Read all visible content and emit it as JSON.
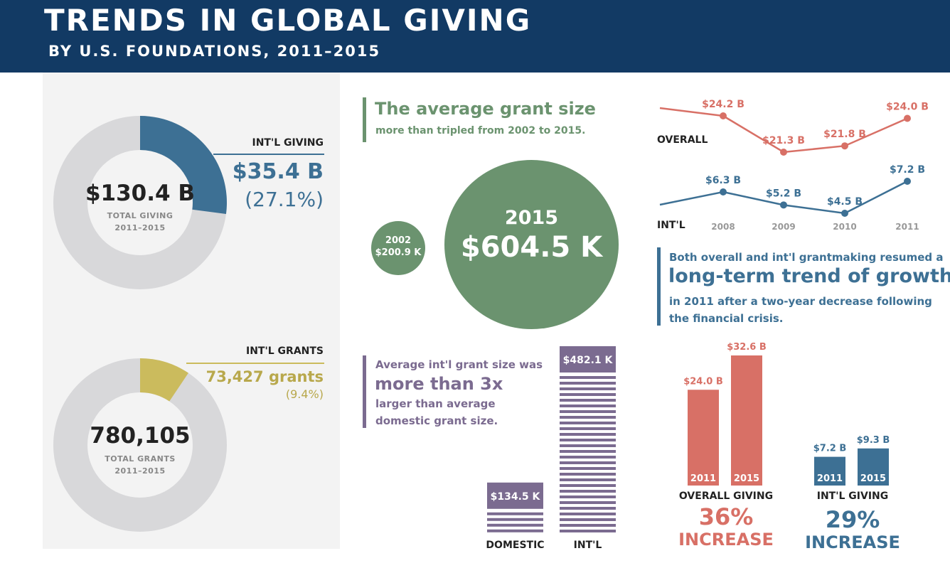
{
  "header": {
    "title": "TRENDS IN GLOBAL GIVING",
    "subtitle": "BY U.S. FOUNDATIONS, 2011–2015"
  },
  "colors": {
    "navy": "#123a64",
    "blue": "#3d7094",
    "green": "#6b936f",
    "gold": "#cbbb5d",
    "purple": "#7b6b90",
    "coral": "#d87066",
    "gray_ring": "#d8d8da"
  },
  "donuts": [
    {
      "center_value": "$130.4 B",
      "center_label_1": "TOTAL GIVING",
      "center_label_2": "2011–2015",
      "callout_label": "INT'L GIVING",
      "callout_value": "$35.4 B",
      "callout_percent": "(27.1%)",
      "share": 0.271
    },
    {
      "center_value": "780,105",
      "center_label_1": "TOTAL GRANTS",
      "center_label_2": "2011–2015",
      "callout_label": "INT'L GRANTS",
      "callout_value": "73,427 grants",
      "callout_percent": "(9.4%)",
      "share": 0.094
    }
  ],
  "grant_size": {
    "headline": "The average grant size",
    "subhead": "more than tripled from 2002 to 2015.",
    "small_year": "2002",
    "small_value": "$200.9 K",
    "big_year": "2015",
    "big_value": "$604.5 K"
  },
  "trend_text": {
    "line1": "Both overall and int'l grantmaking resumed a",
    "emphasis": "long-term trend of growth",
    "line3": "in 2011 after a two-year decrease following",
    "line4": "the financial crisis."
  },
  "intl_text": {
    "line1": "Average int'l grant size was",
    "emphasis": "more than 3x",
    "line3": "larger than average",
    "line4": "domestic grant size."
  },
  "summary": {
    "overall_label": "OVERALL GIVING",
    "overall_pct": "36%",
    "overall_increase": "INCREASE",
    "intl_label": "INT'L GIVING",
    "intl_pct": "29%",
    "intl_increase": "INCREASE"
  },
  "chart_data": [
    {
      "type": "line",
      "x": [
        "2008",
        "2009",
        "2010",
        "2011"
      ],
      "series": [
        {
          "name": "OVERALL",
          "values": [
            24.2,
            21.3,
            21.8,
            24.0
          ],
          "labels": [
            "$24.2 B",
            "$21.3 B",
            "$21.8 B",
            "$24.0 B"
          ]
        },
        {
          "name": "INT'L",
          "values": [
            6.3,
            5.2,
            4.5,
            7.2
          ],
          "labels": [
            "$6.3 B",
            "$5.2 B",
            "$4.5 B",
            "$7.2 B"
          ]
        }
      ]
    },
    {
      "type": "bar",
      "categories": [
        "DOMESTIC",
        "INT'L"
      ],
      "values": [
        134.5,
        482.1
      ],
      "labels": [
        "$134.5 K",
        "$482.1 K"
      ]
    },
    {
      "type": "bar",
      "series": [
        {
          "name": "OVERALL GIVING",
          "categories": [
            "2011",
            "2015"
          ],
          "values": [
            24.0,
            32.6
          ],
          "labels": [
            "$24.0 B",
            "$32.6 B"
          ]
        },
        {
          "name": "INT'L GIVING",
          "categories": [
            "2011",
            "2015"
          ],
          "values": [
            7.2,
            9.3
          ],
          "labels": [
            "$7.2 B",
            "$9.3 B"
          ]
        }
      ]
    }
  ]
}
